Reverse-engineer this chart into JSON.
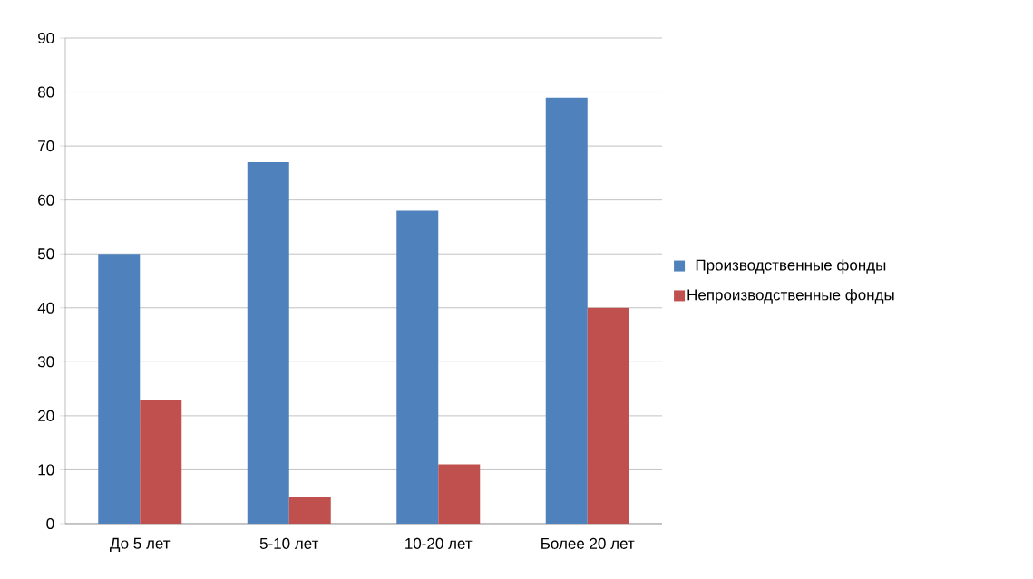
{
  "chart_data": {
    "type": "bar",
    "categories": [
      "До 5 лет",
      "5-10 лет",
      "10-20 лет",
      "Более 20 лет"
    ],
    "series": [
      {
        "name": "Производственные фонды",
        "color": "#4f81bd",
        "values": [
          50,
          67,
          58,
          79
        ]
      },
      {
        "name": "Непроизводственные фонды",
        "color": "#c0504d",
        "values": [
          23,
          5,
          11,
          40
        ]
      }
    ],
    "ylim": [
      0,
      90
    ],
    "yticks": [
      0,
      10,
      20,
      30,
      40,
      50,
      60,
      70,
      80,
      90
    ],
    "grid": "y",
    "legend": "right"
  }
}
